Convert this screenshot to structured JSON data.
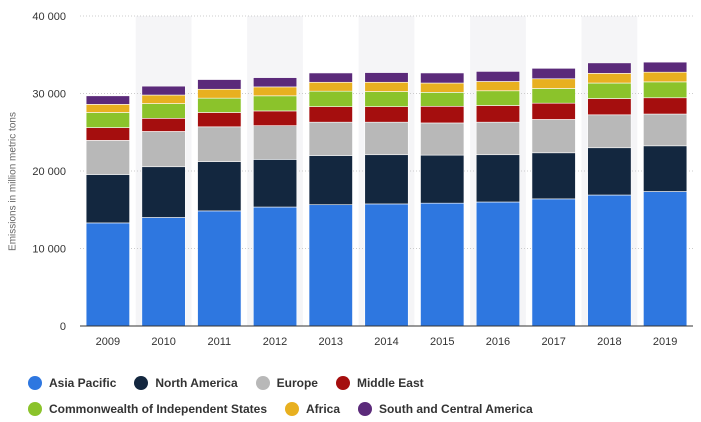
{
  "chart_data": {
    "type": "bar",
    "stacked": true,
    "categories": [
      "2009",
      "2010",
      "2011",
      "2012",
      "2013",
      "2014",
      "2015",
      "2016",
      "2017",
      "2018",
      "2019"
    ],
    "ylabel": "Emissions in million metric tons",
    "ylim": [
      0,
      40000
    ],
    "yticks": [
      "0",
      "10 000",
      "20 000",
      "30 000",
      "40 000"
    ],
    "grid": true,
    "legend_position": "bottom",
    "series": [
      {
        "name": "Asia Pacific",
        "color": "#2e77e0",
        "values": [
          13300,
          14000,
          14850,
          15350,
          15650,
          15750,
          15850,
          16000,
          16400,
          16900,
          17350
        ]
      },
      {
        "name": "North America",
        "color": "#13273f",
        "values": [
          6250,
          6550,
          6350,
          6150,
          6350,
          6350,
          6200,
          6100,
          5950,
          6100,
          5900
        ]
      },
      {
        "name": "Europe",
        "color": "#b8b8b8",
        "values": [
          4400,
          4550,
          4500,
          4350,
          4300,
          4200,
          4150,
          4200,
          4300,
          4250,
          4100
        ]
      },
      {
        "name": "Middle East",
        "color": "#a50e0e",
        "values": [
          1650,
          1700,
          1850,
          1900,
          2000,
          2000,
          2150,
          2150,
          2100,
          2100,
          2100
        ]
      },
      {
        "name": "Commonwealth of Independent States",
        "color": "#8bc32b",
        "values": [
          1950,
          1900,
          1850,
          1950,
          2000,
          1950,
          1800,
          1900,
          1900,
          2000,
          2050
        ]
      },
      {
        "name": "Africa",
        "color": "#e8b020",
        "values": [
          1050,
          1100,
          1150,
          1150,
          1150,
          1200,
          1200,
          1200,
          1250,
          1250,
          1250
        ]
      },
      {
        "name": "South and Central America",
        "color": "#5b2a7a",
        "values": [
          1100,
          1150,
          1250,
          1200,
          1200,
          1250,
          1300,
          1300,
          1350,
          1350,
          1300
        ]
      }
    ]
  }
}
